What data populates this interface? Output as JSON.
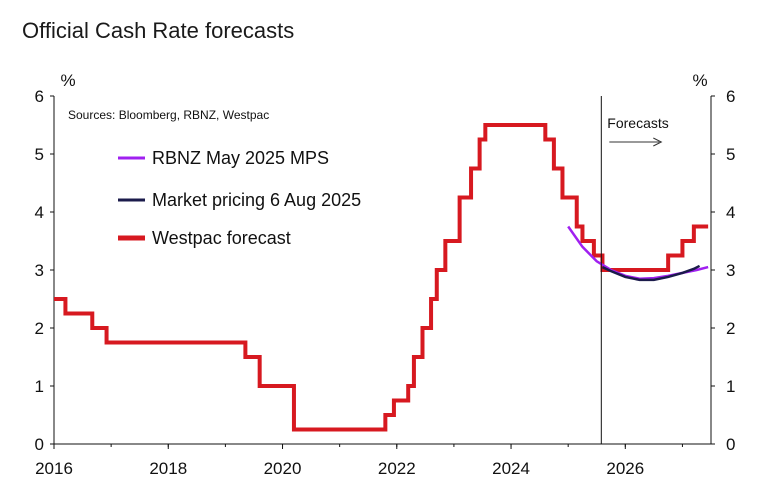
{
  "title": "Official Cash Rate forecasts",
  "chart_data": {
    "type": "line",
    "title": "Official Cash Rate forecasts",
    "source": "Sources: Bloomberg, RBNZ, Westpac",
    "y_unit_left": "%",
    "y_unit_right": "%",
    "ylim": [
      0,
      6
    ],
    "yticks": [
      0,
      1,
      2,
      3,
      4,
      5,
      6
    ],
    "xlim": [
      2016,
      2027.5
    ],
    "xticks": [
      "2016",
      "2018",
      "2020",
      "2022",
      "2024",
      "2026"
    ],
    "grid": false,
    "legend_position": "top-left",
    "annotation": "Forecasts",
    "forecast_start": 2025.58,
    "series": [
      {
        "name": "RBNZ May 2025 MPS",
        "color": "#a020f0",
        "style": "line",
        "points": [
          [
            2025.0,
            3.75
          ],
          [
            2025.25,
            3.4
          ],
          [
            2025.5,
            3.15
          ],
          [
            2025.75,
            3.0
          ],
          [
            2026.0,
            2.9
          ],
          [
            2026.25,
            2.85
          ],
          [
            2026.5,
            2.86
          ],
          [
            2026.75,
            2.9
          ],
          [
            2027.0,
            2.95
          ],
          [
            2027.25,
            3.0
          ],
          [
            2027.45,
            3.05
          ]
        ]
      },
      {
        "name": "Market pricing 6 Aug 2025",
        "color": "#1b1b4b",
        "style": "line",
        "points": [
          [
            2025.6,
            3.05
          ],
          [
            2025.75,
            2.98
          ],
          [
            2026.0,
            2.88
          ],
          [
            2026.25,
            2.83
          ],
          [
            2026.5,
            2.83
          ],
          [
            2026.75,
            2.88
          ],
          [
            2027.0,
            2.95
          ],
          [
            2027.2,
            3.02
          ],
          [
            2027.3,
            3.07
          ]
        ]
      },
      {
        "name": "Westpac forecast",
        "color": "#d71920",
        "style": "step",
        "points": [
          [
            2016.0,
            2.5
          ],
          [
            2016.2,
            2.25
          ],
          [
            2016.67,
            2.0
          ],
          [
            2016.92,
            1.75
          ],
          [
            2019.35,
            1.5
          ],
          [
            2019.6,
            1.0
          ],
          [
            2020.2,
            0.25
          ],
          [
            2021.8,
            0.5
          ],
          [
            2021.95,
            0.75
          ],
          [
            2022.2,
            1.0
          ],
          [
            2022.3,
            1.5
          ],
          [
            2022.45,
            2.0
          ],
          [
            2022.6,
            2.5
          ],
          [
            2022.7,
            3.0
          ],
          [
            2022.85,
            3.5
          ],
          [
            2023.1,
            4.25
          ],
          [
            2023.3,
            4.75
          ],
          [
            2023.45,
            5.25
          ],
          [
            2023.55,
            5.5
          ],
          [
            2024.6,
            5.25
          ],
          [
            2024.75,
            4.75
          ],
          [
            2024.9,
            4.25
          ],
          [
            2025.15,
            3.75
          ],
          [
            2025.25,
            3.5
          ],
          [
            2025.45,
            3.25
          ],
          [
            2025.6,
            3.0
          ],
          [
            2026.75,
            3.25
          ],
          [
            2027.0,
            3.5
          ],
          [
            2027.2,
            3.75
          ],
          [
            2027.45,
            3.75
          ]
        ]
      }
    ]
  }
}
